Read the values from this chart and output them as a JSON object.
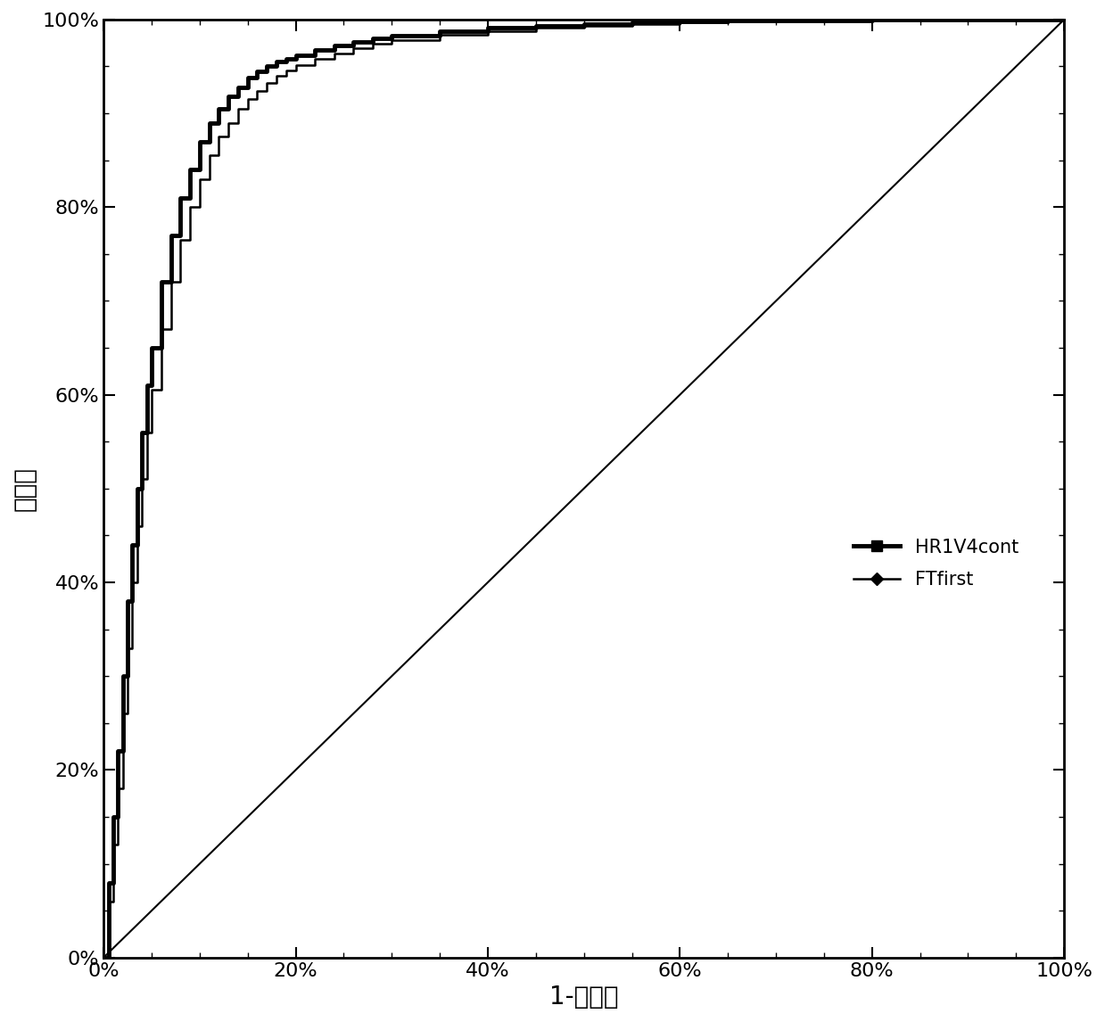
{
  "xlabel": "1-特异性",
  "ylabel": "灵敏度",
  "legend_labels": [
    "HR1V4cont",
    "FTfirst"
  ],
  "line_color": "#000000",
  "background_color": "#ffffff",
  "axis_label_fontsize": 20,
  "tick_fontsize": 16,
  "legend_fontsize": 15,
  "curve1_x": [
    0.0,
    0.005,
    0.01,
    0.015,
    0.02,
    0.025,
    0.03,
    0.035,
    0.04,
    0.045,
    0.05,
    0.06,
    0.07,
    0.08,
    0.09,
    0.1,
    0.11,
    0.12,
    0.13,
    0.14,
    0.15,
    0.16,
    0.17,
    0.18,
    0.19,
    0.2,
    0.22,
    0.24,
    0.26,
    0.28,
    0.3,
    0.35,
    0.4,
    0.45,
    0.5,
    0.55,
    0.6,
    0.65,
    0.7,
    0.8,
    0.85,
    0.9,
    0.95,
    1.0
  ],
  "curve1_y": [
    0.0,
    0.08,
    0.15,
    0.22,
    0.3,
    0.38,
    0.44,
    0.5,
    0.56,
    0.61,
    0.65,
    0.72,
    0.77,
    0.81,
    0.84,
    0.87,
    0.89,
    0.905,
    0.918,
    0.928,
    0.938,
    0.945,
    0.95,
    0.955,
    0.958,
    0.962,
    0.968,
    0.972,
    0.976,
    0.98,
    0.983,
    0.988,
    0.991,
    0.993,
    0.995,
    0.997,
    0.998,
    0.999,
    0.999,
    1.0,
    1.0,
    1.0,
    1.0,
    1.0
  ],
  "curve2_x": [
    0.0,
    0.005,
    0.01,
    0.015,
    0.02,
    0.025,
    0.03,
    0.035,
    0.04,
    0.045,
    0.05,
    0.06,
    0.07,
    0.08,
    0.09,
    0.1,
    0.11,
    0.12,
    0.13,
    0.14,
    0.15,
    0.16,
    0.17,
    0.18,
    0.19,
    0.2,
    0.22,
    0.24,
    0.26,
    0.28,
    0.3,
    0.35,
    0.4,
    0.45,
    0.5,
    0.55,
    0.6,
    0.65,
    0.7,
    0.8,
    0.9,
    0.95,
    1.0
  ],
  "curve2_y": [
    0.0,
    0.06,
    0.12,
    0.18,
    0.26,
    0.33,
    0.4,
    0.46,
    0.51,
    0.56,
    0.605,
    0.67,
    0.72,
    0.765,
    0.8,
    0.83,
    0.855,
    0.875,
    0.89,
    0.905,
    0.915,
    0.924,
    0.932,
    0.94,
    0.946,
    0.951,
    0.958,
    0.964,
    0.969,
    0.974,
    0.978,
    0.984,
    0.988,
    0.991,
    0.993,
    0.995,
    0.997,
    0.998,
    0.999,
    1.0,
    1.0,
    1.0,
    1.0
  ]
}
